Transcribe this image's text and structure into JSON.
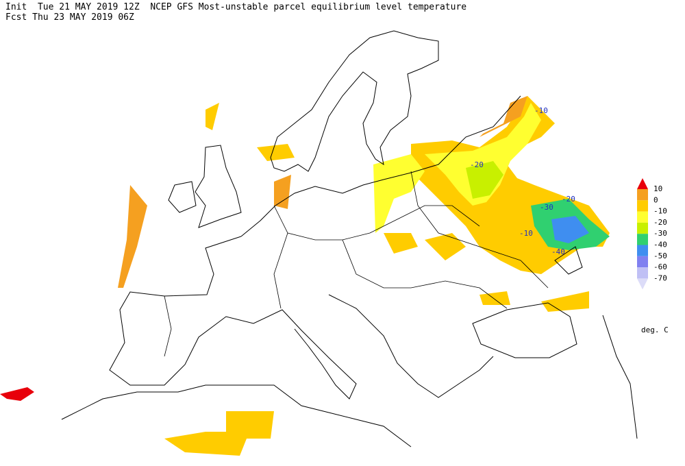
{
  "header": {
    "line1": "Init  Tue 21 MAY 2019 12Z  NCEP GFS Most-unstable parcel equilibrium level temperature",
    "line2": "Fcst Thu 23 MAY 2019 06Z"
  },
  "legend": {
    "labels": [
      "10",
      "0",
      "-10",
      "-20",
      "-30",
      "-40",
      "-50",
      "-60",
      "-70"
    ],
    "colors": [
      "#e8000b",
      "#f5a020",
      "#ffcc00",
      "#ffff30",
      "#c8f000",
      "#30d070",
      "#3f8ef0",
      "#8080f0",
      "#c0c0f5",
      "#dcdcf8"
    ],
    "unit": "deg. C"
  },
  "contour_labels": [
    "-10",
    "-20",
    "-30",
    "-20",
    "-10",
    "-40"
  ]
}
